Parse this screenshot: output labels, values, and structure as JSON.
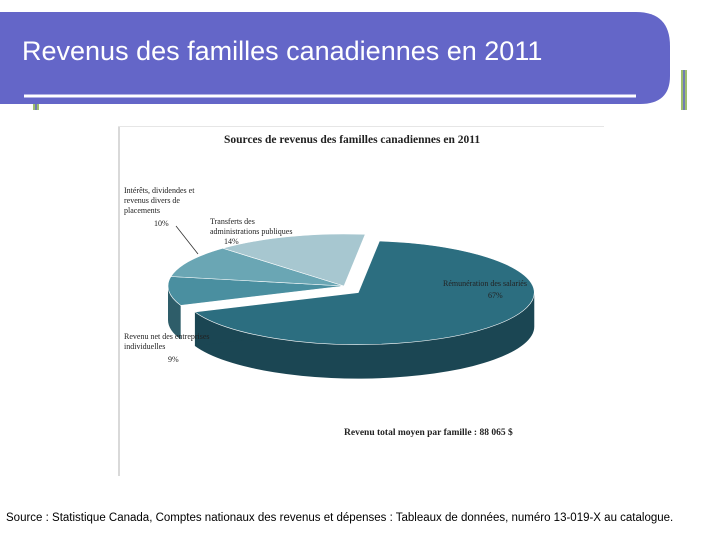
{
  "slide": {
    "title": "Revenus des familles canadiennes en 2011",
    "source": "Source : Statistique Canada, Comptes nationaux des revenus et dépenses : Tableaux de données, numéro 13-019-X au catalogue."
  },
  "colors": {
    "header_bg": "#6466c8",
    "header_shadow": "#4a4aa0",
    "frame": "#9fbe6e",
    "frame_inner": "#6466c8"
  },
  "chart_data": {
    "type": "pie",
    "title": "Sources de revenus des familles canadiennes en 2011",
    "annotation": "Revenu total moyen par famille : 88 065 $",
    "slices": [
      {
        "label": "Rémunération des salariés",
        "pct_label": "67%",
        "value": 67,
        "color": "#2c6e80",
        "color_dark": "#1b4653"
      },
      {
        "label": "Revenu net des entreprises individuelles",
        "pct_label": "9%",
        "value": 9,
        "color": "#4a8fa0",
        "color_dark": "#2e5d69"
      },
      {
        "label": "Intérêts, dividendes et revenus divers de placements",
        "pct_label": "10%",
        "value": 10,
        "color": "#6aa6b4",
        "color_dark": "#3f6f7a"
      },
      {
        "label": "Transferts des administrations publiques",
        "pct_label": "14%",
        "value": 14,
        "color": "#a7c7d0",
        "color_dark": "#6f8f98"
      }
    ]
  }
}
